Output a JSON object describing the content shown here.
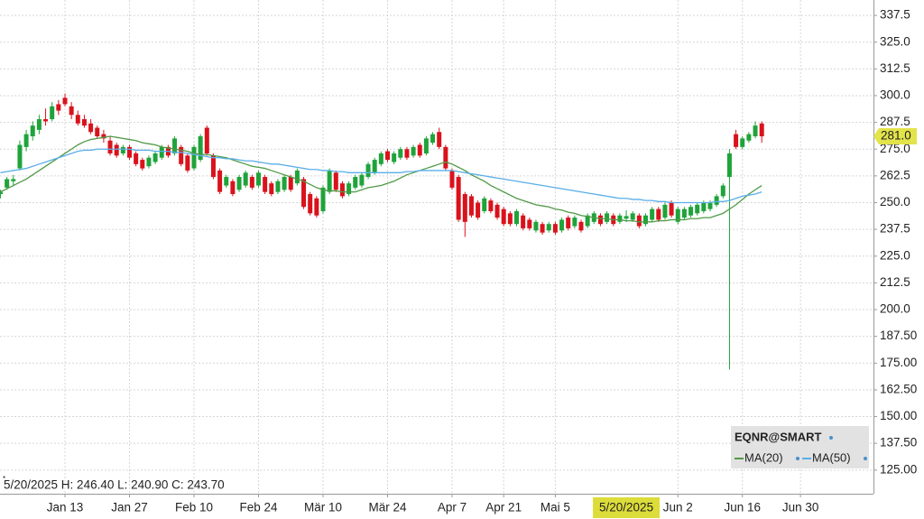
{
  "chart_data": {
    "type": "candlestick",
    "legend_title": "EQNR@SMART",
    "info_text": "5/20/2025 H: 246.40 L: 240.90 C: 243.70",
    "crosshair_date": "5/20/2025",
    "last_price": {
      "value": 281,
      "label": "281.0"
    },
    "grid": true,
    "ylim": [
      114.8,
      344.7
    ],
    "yticks": [
      {
        "value": 125,
        "label": "125.00"
      },
      {
        "value": 137.5,
        "label": "137.50"
      },
      {
        "value": 150,
        "label": "150.00"
      },
      {
        "value": 162.5,
        "label": "162.50"
      },
      {
        "value": 175,
        "label": "175.00"
      },
      {
        "value": 187.5,
        "label": "187.50"
      },
      {
        "value": 200,
        "label": "200.0"
      },
      {
        "value": 212.5,
        "label": "212.5"
      },
      {
        "value": 225,
        "label": "225.0"
      },
      {
        "value": 237.5,
        "label": "237.5"
      },
      {
        "value": 250,
        "label": "250.0"
      },
      {
        "value": 262.5,
        "label": "262.5"
      },
      {
        "value": 275,
        "label": "275.0"
      },
      {
        "value": 287.5,
        "label": "287.5"
      },
      {
        "value": 300,
        "label": "300.0"
      },
      {
        "value": 312.5,
        "label": "312.5"
      },
      {
        "value": 325,
        "label": "325.0"
      },
      {
        "value": 337.5,
        "label": "337.5"
      }
    ],
    "categories": [
      null,
      null,
      null,
      null,
      null,
      null,
      null,
      null,
      null,
      null,
      "Jan 13",
      null,
      null,
      null,
      null,
      null,
      null,
      null,
      null,
      null,
      "Jan 27",
      null,
      null,
      null,
      null,
      null,
      null,
      null,
      null,
      null,
      "Feb 10",
      null,
      null,
      null,
      null,
      null,
      null,
      null,
      null,
      null,
      "Feb 24",
      null,
      null,
      null,
      null,
      null,
      null,
      null,
      null,
      null,
      "Mär 10",
      null,
      null,
      null,
      null,
      null,
      null,
      null,
      null,
      null,
      "Mär 24",
      null,
      null,
      null,
      null,
      null,
      null,
      null,
      null,
      null,
      "Apr 7",
      null,
      null,
      null,
      null,
      null,
      null,
      null,
      "Apr 21",
      null,
      null,
      null,
      null,
      null,
      null,
      null,
      "Mai 5",
      null,
      null,
      null,
      null,
      null,
      null,
      null,
      null,
      null,
      null,
      null,
      null,
      null,
      null,
      null,
      null,
      null,
      null,
      "Jun 2",
      null,
      null,
      null,
      null,
      null,
      null,
      null,
      null,
      null,
      "Jun 16",
      null,
      null,
      null,
      null,
      null,
      null,
      null,
      null,
      "Jun 30",
      null,
      null,
      null,
      null,
      null,
      null,
      null,
      null,
      null,
      null,
      null
    ],
    "candles": {
      "up_color": "#1fa33a",
      "down_color": "#d9121c",
      "open": [
        254,
        257,
        260,
        266,
        276,
        281,
        284,
        289,
        289,
        296,
        299,
        295,
        291,
        289,
        287,
        285,
        282,
        279,
        277,
        273,
        276,
        273,
        270,
        267,
        269,
        271,
        276,
        273,
        276,
        272,
        266,
        270,
        285,
        272,
        265,
        258,
        260,
        256,
        258,
        262,
        258,
        262,
        259,
        255,
        256,
        262,
        259,
        261,
        254,
        252,
        246,
        255,
        264,
        259,
        254,
        257,
        258,
        262,
        264,
        268,
        274,
        269,
        271,
        275,
        272,
        277,
        273,
        278,
        283,
        276,
        265,
        262,
        254,
        253,
        250,
        246,
        251,
        249,
        247,
        245,
        240,
        244,
        242,
        237,
        240,
        237,
        240,
        237,
        243,
        239,
        241,
        239,
        241,
        244,
        241,
        244,
        241,
        242.5,
        242,
        244,
        240,
        242,
        247,
        243,
        250,
        241,
        243,
        244,
        245,
        246,
        247,
        249,
        253,
        262,
        282,
        276,
        279,
        281,
        287,
        null,
        null,
        null,
        null,
        null,
        null,
        null,
        null,
        null,
        null,
        null,
        null,
        null,
        null,
        null,
        null,
        null
      ],
      "high": [
        256,
        262,
        263,
        279,
        284,
        288,
        291,
        294,
        297,
        298,
        301,
        297,
        293,
        291,
        289,
        286,
        284,
        281,
        278,
        277,
        277,
        274,
        271,
        272,
        274,
        277,
        277,
        281,
        277,
        273,
        277,
        282,
        286,
        273,
        266,
        263,
        261,
        263,
        265,
        263,
        265,
        263,
        260,
        261,
        263,
        263,
        266,
        262,
        255,
        253,
        258,
        266,
        265,
        260,
        260,
        263,
        264,
        269,
        271,
        274,
        275,
        274,
        276,
        276,
        277,
        278,
        281,
        283,
        285,
        277,
        266,
        263,
        255,
        254,
        251,
        253,
        252,
        250,
        248,
        246,
        247,
        245,
        243,
        242,
        241,
        241,
        241,
        243,
        244,
        244,
        242,
        245,
        246,
        245,
        246,
        245,
        245,
        246.4,
        246,
        245,
        245,
        248,
        248,
        250,
        251,
        248,
        248,
        249,
        250,
        251,
        251,
        254,
        259,
        275,
        284,
        281,
        283,
        288,
        288,
        null,
        null,
        null,
        null,
        null,
        null,
        null,
        null,
        null,
        null,
        null,
        null,
        null,
        null,
        null,
        null,
        null
      ],
      "low": [
        252,
        256,
        258,
        265,
        274,
        279,
        282,
        286,
        288,
        291,
        295,
        289,
        286,
        285,
        282,
        280,
        278,
        272,
        271,
        272,
        270,
        267,
        265,
        266,
        268,
        270,
        271,
        272,
        267,
        264,
        265,
        269,
        272,
        261,
        254,
        257,
        253,
        255,
        257,
        256,
        257,
        254,
        253,
        254,
        255,
        255,
        258,
        247,
        244,
        243,
        245,
        254,
        255,
        252,
        253,
        256,
        257,
        261,
        263,
        267,
        269,
        268,
        270,
        270,
        271,
        271,
        272,
        277,
        275,
        265,
        256,
        241,
        234,
        243,
        242,
        245,
        245,
        242,
        239,
        239,
        239,
        237,
        237,
        236,
        235,
        236,
        235,
        236,
        237,
        238,
        236,
        238,
        240,
        239,
        240,
        239,
        240,
        240.9,
        241,
        238,
        239,
        241,
        241,
        242,
        243,
        240,
        242,
        243,
        244,
        245,
        246,
        248,
        252,
        172,
        275,
        275,
        278,
        280,
        278,
        null,
        null,
        null,
        null,
        null,
        null,
        null,
        null,
        null,
        null,
        null,
        null,
        null,
        null,
        null,
        null,
        null
      ],
      "close": [
        255,
        261,
        261,
        277,
        282,
        286,
        289,
        288,
        295,
        293,
        296,
        291,
        287,
        286,
        283,
        281,
        280,
        273,
        272,
        276,
        271,
        268,
        266,
        271,
        273,
        276,
        272,
        280,
        268,
        265,
        276,
        281,
        273,
        262,
        255,
        262,
        254,
        262,
        264,
        257,
        264,
        255,
        254,
        260,
        262,
        256,
        265,
        248,
        245,
        244,
        257,
        265,
        256,
        253,
        259,
        262,
        263,
        268,
        270,
        273,
        270,
        273,
        275,
        271,
        276,
        272,
        280,
        282,
        276,
        266,
        257,
        242,
        241,
        244,
        243,
        252,
        246,
        243,
        240,
        240,
        246,
        238,
        238,
        241,
        236,
        240,
        236,
        242,
        238,
        243,
        237,
        244,
        245,
        240,
        245,
        240,
        244,
        243.7,
        245,
        239,
        244,
        247,
        242,
        249,
        244,
        247,
        247,
        248,
        249,
        250,
        250,
        253,
        258,
        273,
        276,
        280,
        282,
        286,
        281,
        null,
        null,
        null,
        null,
        null,
        null,
        null,
        null,
        null,
        null,
        null,
        null,
        null,
        null,
        null,
        null,
        null
      ]
    },
    "series": [
      {
        "name": "MA(20)",
        "color": "#4f9a45",
        "values": [
          255,
          256.5,
          258,
          259.5,
          261,
          263,
          265,
          267,
          269,
          271,
          273,
          275,
          277,
          278.5,
          279.5,
          280,
          280.5,
          281,
          280.5,
          280,
          279.5,
          279,
          278,
          277.5,
          277,
          276,
          275.5,
          275,
          274.5,
          274,
          273,
          272.5,
          272.5,
          272,
          271.5,
          271,
          270,
          269,
          268,
          267,
          266.5,
          266,
          265,
          264,
          263,
          262,
          261,
          260,
          258.5,
          257,
          256,
          255.5,
          255.5,
          255,
          255,
          255,
          256,
          257,
          257.5,
          258,
          259,
          260,
          261.5,
          263,
          264,
          265,
          266,
          267,
          268,
          269,
          268,
          266.5,
          265,
          263,
          261.5,
          260,
          258,
          256.5,
          255,
          253.5,
          252,
          251,
          250,
          249,
          248.5,
          248,
          247,
          246.5,
          245.5,
          245,
          244,
          243.5,
          243,
          242.5,
          242.5,
          242,
          242,
          241.5,
          241.5,
          241,
          241,
          241,
          241.5,
          241.5,
          242,
          242,
          242,
          242.5,
          242.5,
          243,
          243,
          244,
          245,
          247,
          249,
          251.5,
          254,
          256,
          258,
          null,
          null,
          null,
          null,
          null,
          null,
          null,
          null,
          null,
          null,
          null,
          null,
          null,
          null,
          null,
          null,
          null
        ]
      },
      {
        "name": "MA(50)",
        "color": "#5aaee8",
        "values": [
          264,
          264.5,
          265,
          265.5,
          266,
          267,
          268,
          269,
          270,
          271,
          272,
          273,
          274,
          274.5,
          274.5,
          275,
          275,
          275,
          275,
          275,
          275,
          274.5,
          274.5,
          274.5,
          274,
          274,
          274,
          273.5,
          273.5,
          273,
          272.5,
          272,
          271.5,
          271,
          271,
          270.5,
          270.5,
          270,
          269.5,
          269.5,
          269,
          268.5,
          268,
          268,
          267.5,
          267,
          266.5,
          266,
          265.5,
          265.5,
          265,
          265,
          264.5,
          264.5,
          264,
          264,
          264,
          264,
          264,
          264,
          264,
          264,
          264,
          264.5,
          264.5,
          265,
          265,
          265,
          265,
          265,
          265,
          264.5,
          264,
          263.5,
          263,
          262.5,
          262,
          261.5,
          261,
          260.5,
          260,
          259.5,
          259,
          258.5,
          258,
          257.5,
          257,
          256.5,
          256,
          255.5,
          255,
          254.5,
          254,
          253.5,
          253,
          252.5,
          252,
          252,
          251.5,
          251.5,
          251,
          251,
          250.5,
          250.5,
          250,
          250,
          250,
          250,
          250,
          250,
          250,
          250.5,
          250.5,
          251,
          252,
          253,
          253.5,
          254,
          255,
          null,
          null,
          null,
          null,
          null,
          null,
          null,
          null,
          null,
          null,
          null,
          null,
          null,
          null,
          null,
          null,
          null
        ]
      }
    ]
  }
}
